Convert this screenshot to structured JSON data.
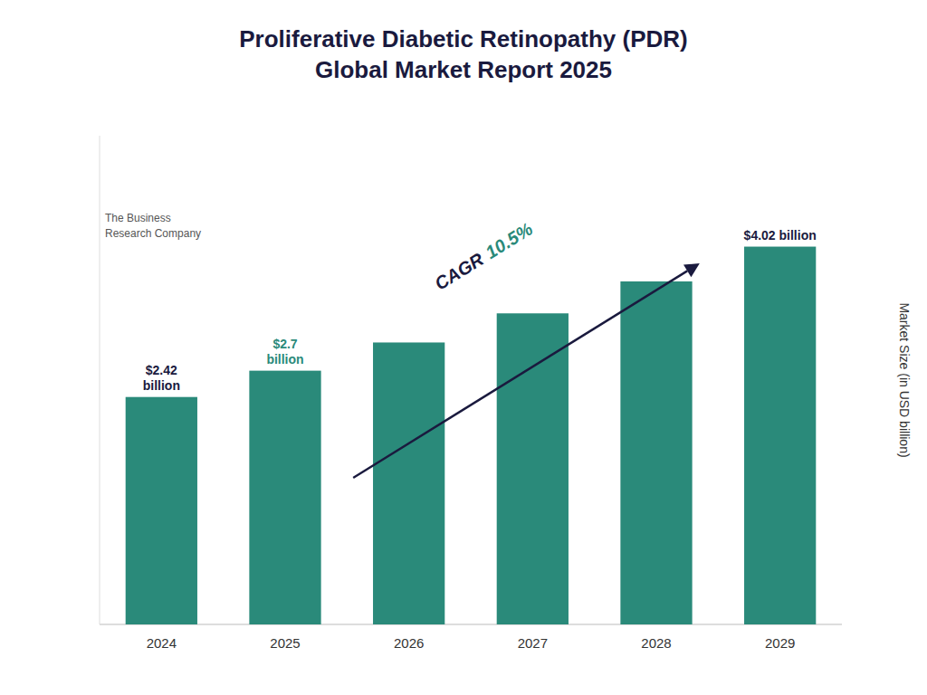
{
  "chart_data": {
    "type": "bar",
    "title": "Proliferative Diabetic Retinopathy (PDR)\nGlobal Market Report 2025",
    "categories": [
      "2024",
      "2025",
      "2026",
      "2027",
      "2028",
      "2029"
    ],
    "values": [
      2.42,
      2.7,
      3.0,
      3.31,
      3.65,
      4.02
    ],
    "color": "#2a8a7a",
    "ylabel": "Market Size (in USD billion)",
    "ylim": [
      0,
      5.2
    ],
    "grid": false,
    "tick_labels": "x",
    "annotations": [
      {
        "text": "$2.42\nbillion",
        "color": "#1a1a3e",
        "category": "2024"
      },
      {
        "text": "$2.7\nbillion",
        "color": "#2a8a7a",
        "category": "2025"
      },
      {
        "text": "$4.02 billion",
        "color": "#1a1a3e",
        "category": "2029"
      },
      {
        "parts": [
          {
            "text": "CAGR",
            "color": "#1a1a3e"
          },
          {
            "text": "10.5%",
            "color": "#2a8a7a"
          }
        ],
        "arrow": true
      },
      {
        "text": "The Business\nResearch Company",
        "color": "#555555"
      }
    ]
  }
}
